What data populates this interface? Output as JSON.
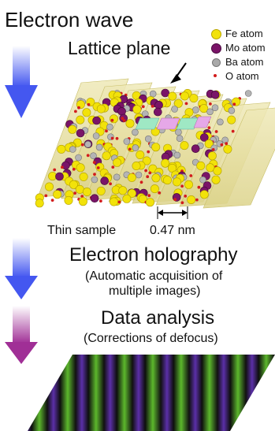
{
  "title": "Electron wave",
  "lattice_label": "Lattice plane",
  "legend": [
    {
      "label": "Fe atom",
      "color": "#f2e20a"
    },
    {
      "label": "Mo atom",
      "color": "#7a1468"
    },
    {
      "label": "Ba atom",
      "color": "#a9a9a9"
    },
    {
      "label": "O atom",
      "color": "#d21c1c"
    }
  ],
  "sample_label": "Thin sample",
  "spacing_label": "0.47 nm",
  "step1": {
    "title": "Electron holography",
    "subtitle_line1": "(Automatic acquisition of",
    "subtitle_line2": "multiple images)"
  },
  "step2": {
    "title": "Data analysis",
    "subtitle": "(Corrections of defocus)"
  },
  "colors": {
    "arrow_blue": "#4a5cf0",
    "arrow_purple": "#a0329a",
    "plane": "#e7e0a4",
    "fringe_green": "#59b52b",
    "fringe_purple": "#5a2ea8"
  }
}
